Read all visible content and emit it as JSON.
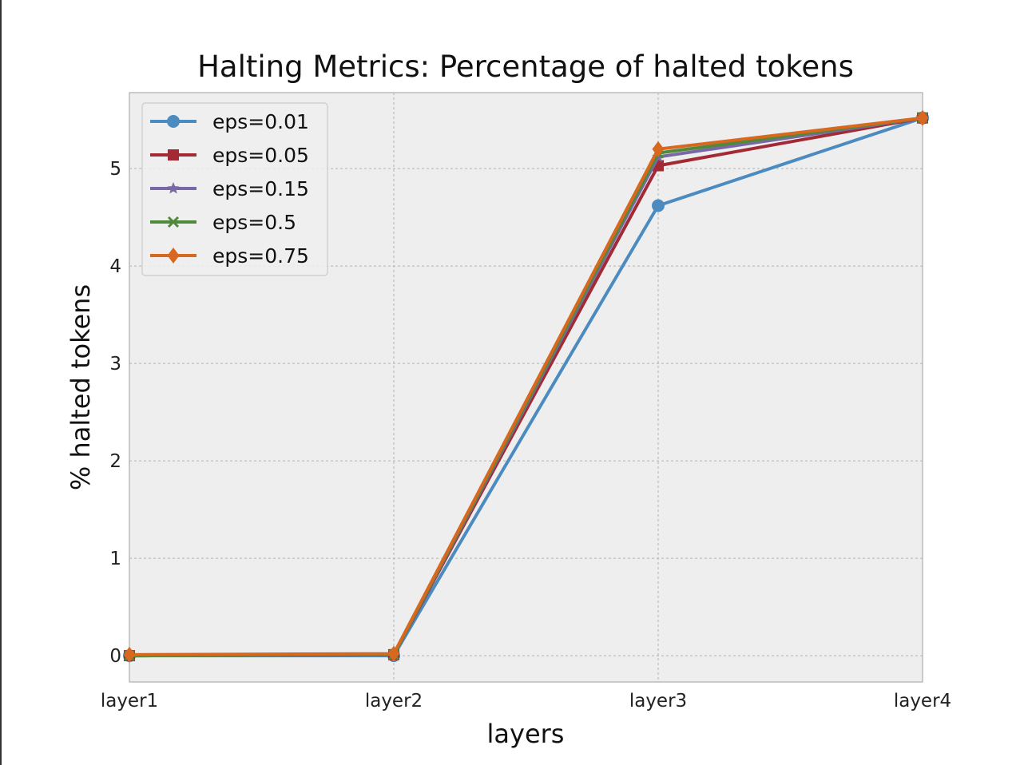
{
  "chart_data": {
    "type": "line",
    "title": "Halting Metrics: Percentage of halted tokens",
    "xlabel": "layers",
    "ylabel": "% halted tokens",
    "categories": [
      "layer1",
      "layer2",
      "layer3",
      "layer4"
    ],
    "yticks": [
      0,
      1,
      2,
      3,
      4,
      5
    ],
    "ylim": [
      -0.27,
      5.78
    ],
    "grid": true,
    "legend_position": "top-left",
    "series": [
      {
        "name": "eps=0.01",
        "color": "#4c8bbf",
        "marker": "circle",
        "values": [
          0.0,
          0.0,
          4.62,
          5.52
        ]
      },
      {
        "name": "eps=0.05",
        "color": "#a12a35",
        "marker": "square",
        "values": [
          0.0,
          0.01,
          5.03,
          5.52
        ]
      },
      {
        "name": "eps=0.15",
        "color": "#7a68a6",
        "marker": "star",
        "values": [
          0.0,
          0.01,
          5.12,
          5.52
        ]
      },
      {
        "name": "eps=0.5",
        "color": "#4f8a3a",
        "marker": "x",
        "values": [
          0.0,
          0.01,
          5.16,
          5.52
        ]
      },
      {
        "name": "eps=0.75",
        "color": "#d8681f",
        "marker": "diamond",
        "values": [
          0.01,
          0.02,
          5.2,
          5.52
        ]
      }
    ]
  }
}
